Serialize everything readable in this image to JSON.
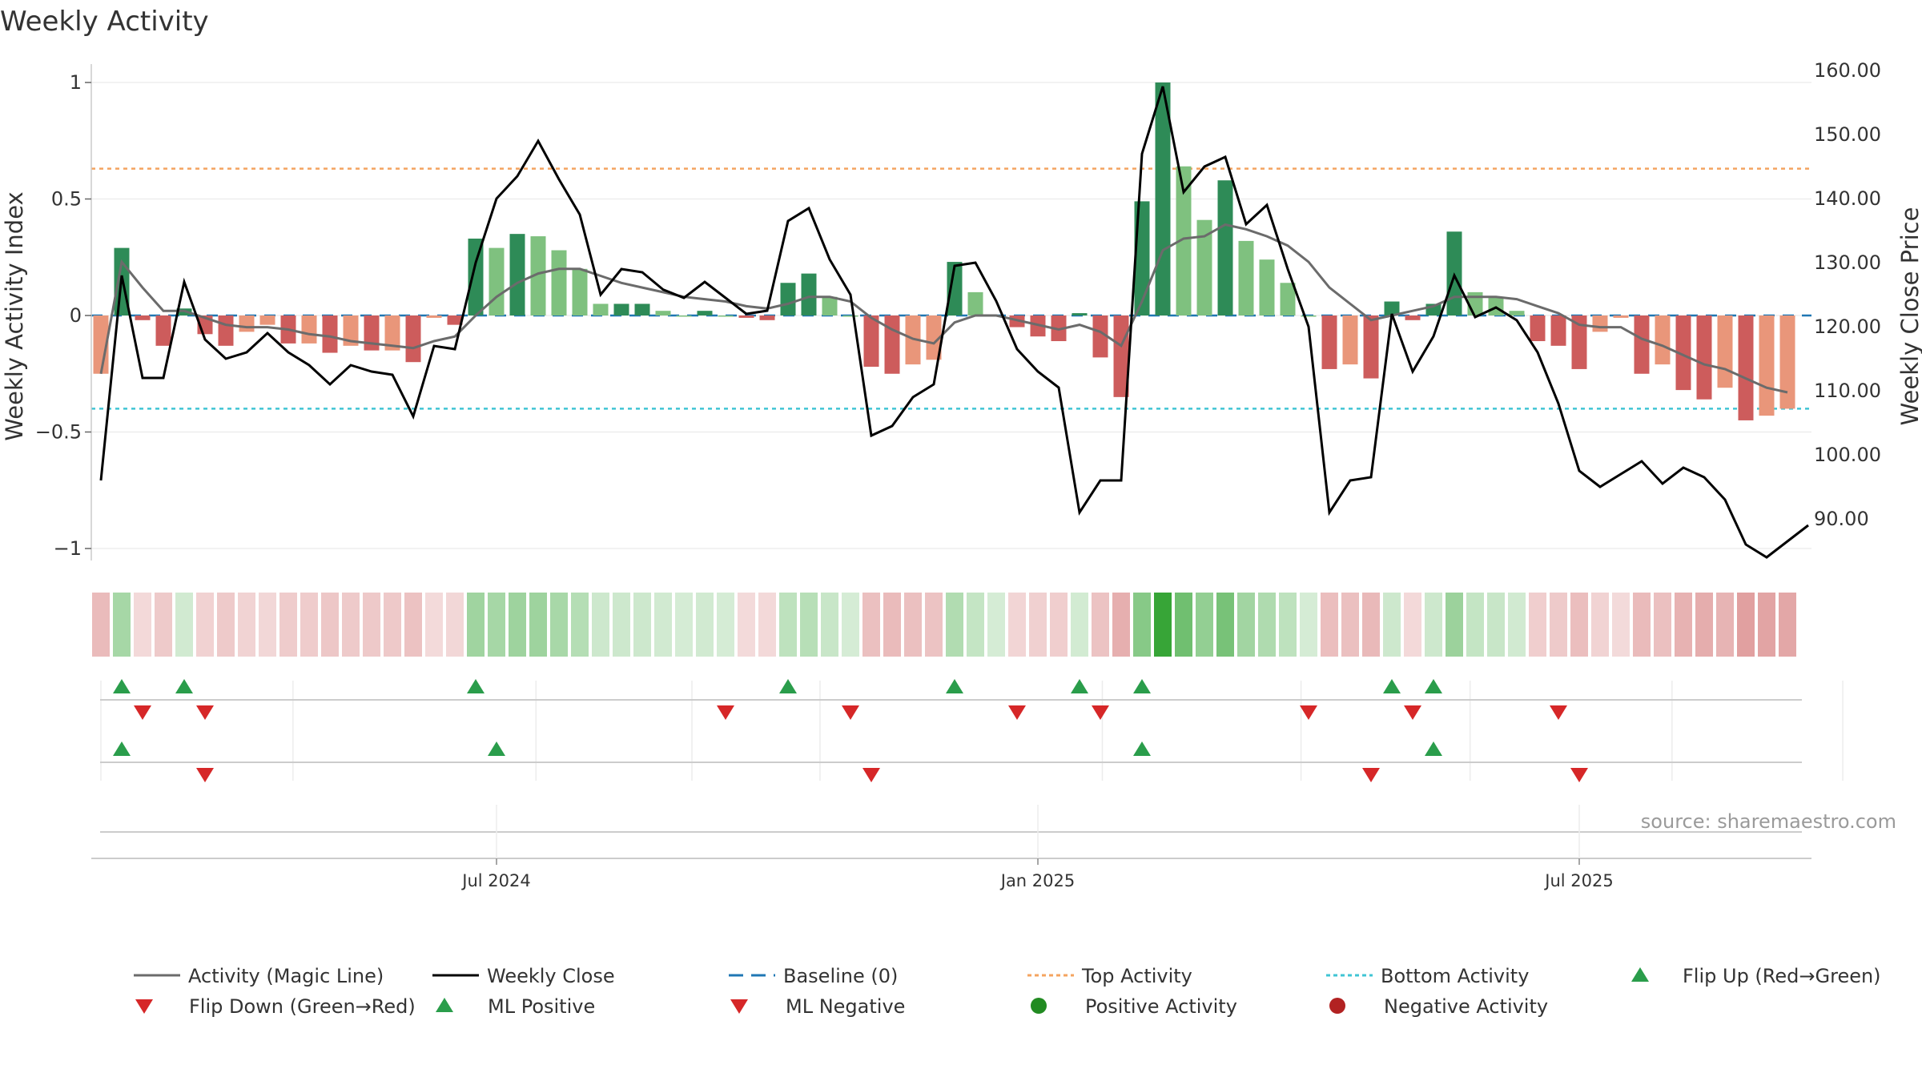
{
  "chart_data": {
    "type": "bar+line",
    "title": "Weekly Activity",
    "ylabel_left": "Weekly Activity Index",
    "ylabel_right": "Weekly Close Price",
    "ylim_left": [
      -1.1,
      1.05
    ],
    "ylim_right": [
      84,
      162
    ],
    "yticks_left": [
      1,
      0.5,
      0,
      -0.5,
      -1
    ],
    "ytick_labels_left": [
      "1",
      "0.5",
      "0",
      "−0.5",
      "−1"
    ],
    "yticks_right": [
      160,
      150,
      140,
      130,
      120,
      110,
      100,
      90
    ],
    "ytick_labels_right": [
      "160.00",
      "150.00",
      "140.00",
      "130.00",
      "120.00",
      "110.00",
      "100.00",
      "90.00"
    ],
    "date_ticks": [
      {
        "week": 19,
        "label": "Jul 2024"
      },
      {
        "week": 45,
        "label": "Jan 2025"
      },
      {
        "week": 71,
        "label": "Jul 2025"
      }
    ],
    "top_activity": 0.63,
    "bottom_activity": -0.4,
    "baseline": 0,
    "activity": [
      -0.25,
      0.29,
      -0.02,
      -0.13,
      0.03,
      -0.08,
      -0.13,
      -0.07,
      -0.04,
      -0.12,
      -0.12,
      -0.16,
      -0.13,
      -0.15,
      -0.15,
      -0.2,
      -0.01,
      -0.04,
      0.33,
      0.29,
      0.35,
      0.34,
      0.28,
      0.2,
      0.05,
      0.05,
      0.05,
      0.02,
      0.0,
      0.02,
      0.0,
      -0.01,
      -0.02,
      0.14,
      0.18,
      0.08,
      0.0,
      -0.22,
      -0.25,
      -0.21,
      -0.19,
      0.23,
      0.1,
      0.0,
      -0.05,
      -0.09,
      -0.11,
      0.01,
      -0.18,
      -0.35,
      0.49,
      1.0,
      0.64,
      0.41,
      0.58,
      0.32,
      0.24,
      0.14,
      0.0,
      -0.23,
      -0.21,
      -0.27,
      0.06,
      -0.02,
      0.05,
      0.36,
      0.1,
      0.08,
      0.02,
      -0.11,
      -0.13,
      -0.23,
      -0.07,
      -0.01,
      -0.25,
      -0.21,
      -0.32,
      -0.36,
      -0.31,
      -0.45,
      -0.43,
      -0.4
    ],
    "magic_line": [
      -0.25,
      0.23,
      0.12,
      0.02,
      0.02,
      -0.01,
      -0.04,
      -0.05,
      -0.05,
      -0.06,
      -0.08,
      -0.09,
      -0.11,
      -0.12,
      -0.13,
      -0.14,
      -0.11,
      -0.09,
      0.0,
      0.08,
      0.14,
      0.18,
      0.2,
      0.2,
      0.17,
      0.14,
      0.12,
      0.1,
      0.08,
      0.07,
      0.06,
      0.04,
      0.03,
      0.05,
      0.08,
      0.08,
      0.06,
      -0.01,
      -0.06,
      -0.1,
      -0.12,
      -0.03,
      0.0,
      0.0,
      -0.02,
      -0.04,
      -0.06,
      -0.04,
      -0.07,
      -0.13,
      0.06,
      0.28,
      0.33,
      0.34,
      0.39,
      0.37,
      0.34,
      0.3,
      0.23,
      0.12,
      0.05,
      -0.02,
      0.0,
      0.02,
      0.04,
      0.08,
      0.08,
      0.08,
      0.07,
      0.04,
      0.01,
      -0.04,
      -0.05,
      -0.05,
      -0.1,
      -0.13,
      -0.17,
      -0.21,
      -0.23,
      -0.27,
      -0.31,
      -0.33
    ],
    "weekly_close": [
      96,
      128,
      112,
      112,
      127,
      118,
      115,
      116,
      119,
      116,
      114,
      111,
      114,
      113,
      112.5,
      106,
      117,
      116.5,
      130,
      140,
      143.5,
      149,
      143,
      137.5,
      125,
      129,
      128.5,
      125.8,
      124.5,
      127,
      124.5,
      122,
      122.5,
      136.5,
      138.5,
      130.5,
      125,
      103,
      104.5,
      109,
      111,
      129.5,
      130,
      124,
      116.5,
      113,
      110.5,
      91,
      96,
      96,
      147,
      157.5,
      141,
      145,
      146.5,
      136,
      139,
      129,
      120,
      91,
      96,
      96.5,
      122,
      113,
      118.5,
      128,
      121.5,
      123,
      121,
      116,
      108,
      97.5,
      95,
      97,
      99,
      95.5,
      98,
      96.5,
      93,
      86,
      84,
      86.5,
      89
    ],
    "flip_up": [
      1,
      4,
      18,
      33,
      41,
      47,
      50,
      62,
      64
    ],
    "flip_down": [
      2,
      5,
      30,
      36,
      44,
      48,
      58,
      63,
      70
    ],
    "ml_positive": [
      1,
      19,
      50,
      64
    ],
    "ml_negative": [
      5,
      37,
      61,
      71
    ],
    "colors": {
      "bar_dark_green": "#2e8b57",
      "bar_light_green": "#7fc17f",
      "bar_dark_red": "#cd5c5c",
      "bar_light_red": "#e9967a",
      "magic_line": "#6b6b6b",
      "weekly_close": "#000000",
      "baseline": "#1f77b4",
      "top_activity": "#f4a460",
      "bottom_activity": "#40c4d4",
      "triangle_up": "#2a9d4b",
      "triangle_down": "#d62728",
      "positive_dot": "#228b22",
      "negative_dot": "#b22222"
    },
    "legend": [
      {
        "key": "magic",
        "label": "Activity (Magic Line)"
      },
      {
        "key": "close",
        "label": "Weekly Close"
      },
      {
        "key": "baseline",
        "label": "Baseline (0)"
      },
      {
        "key": "top",
        "label": "Top Activity"
      },
      {
        "key": "bottom",
        "label": "Bottom Activity"
      },
      {
        "key": "flipup",
        "label": "Flip Up (Red→Green)"
      },
      {
        "key": "flipdown",
        "label": "Flip Down (Green→Red)"
      },
      {
        "key": "mlpos",
        "label": "ML Positive"
      },
      {
        "key": "mlneg",
        "label": "ML Negative"
      },
      {
        "key": "posdot",
        "label": "Positive Activity"
      },
      {
        "key": "negdot",
        "label": "Negative Activity"
      }
    ],
    "source": "source: sharemaestro.com"
  }
}
